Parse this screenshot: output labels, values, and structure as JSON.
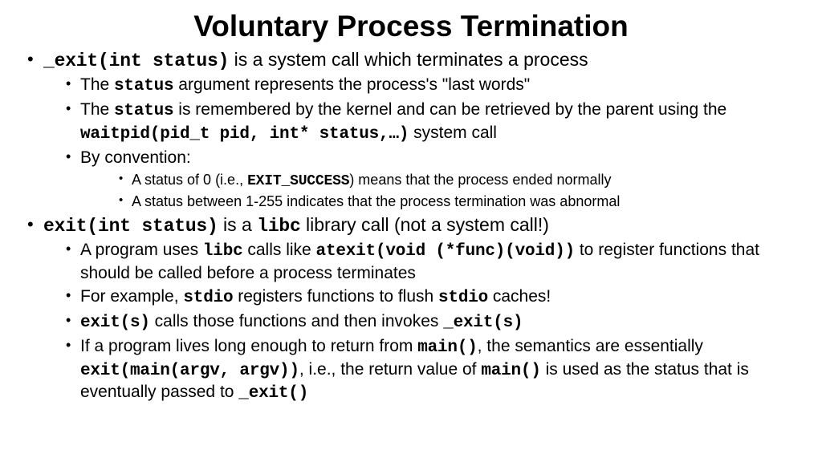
{
  "title": "Voluntary Process Termination",
  "b1": {
    "code1": "_exit(int status)",
    "rest1": " is a system call which terminates a process",
    "sub": {
      "s1a": "The ",
      "s1code": "status",
      "s1b": " argument represents the process's \"last words\"",
      "s2a": "The ",
      "s2code1": "status",
      "s2b": " is remembered by the kernel and can be retrieved by the parent using the ",
      "s2code2": "waitpid(pid_t pid, int* status,…)",
      "s2c": " system call",
      "s3": "By convention:",
      "s3sub": {
        "a1": "A status of 0 (i.e., ",
        "a1code": "EXIT_SUCCESS",
        "a2": ") means that the process ended normally",
        "b": "A status between 1-255 indicates that the process termination was abnormal"
      }
    }
  },
  "b2": {
    "code1": "exit(int status)",
    "mid": " is a ",
    "code2": "libc",
    "rest": " library call (not a system call!)",
    "sub": {
      "s1a": "A program uses ",
      "s1code1": "libc",
      "s1b": " calls like ",
      "s1code2": "atexit(void (*func)(void))",
      "s1c": " to register functions that should be called before a process terminates",
      "s2a": "For example, ",
      "s2code1": "stdio",
      "s2b": " registers functions to flush ",
      "s2code2": "stdio",
      "s2c": " caches!",
      "s3code1": "exit(s)",
      "s3a": " calls those functions and then invokes ",
      "s3code2": "_exit(s)",
      "s4a": "If a program lives long enough to return from ",
      "s4code1": "main()",
      "s4b": ", the semantics are essentially ",
      "s4code2": "exit(main(argv, argv))",
      "s4c": ", i.e., the return value of ",
      "s4code3": "main()",
      "s4d": " is used as the status that is eventually passed to ",
      "s4code4": "_exit()"
    }
  }
}
